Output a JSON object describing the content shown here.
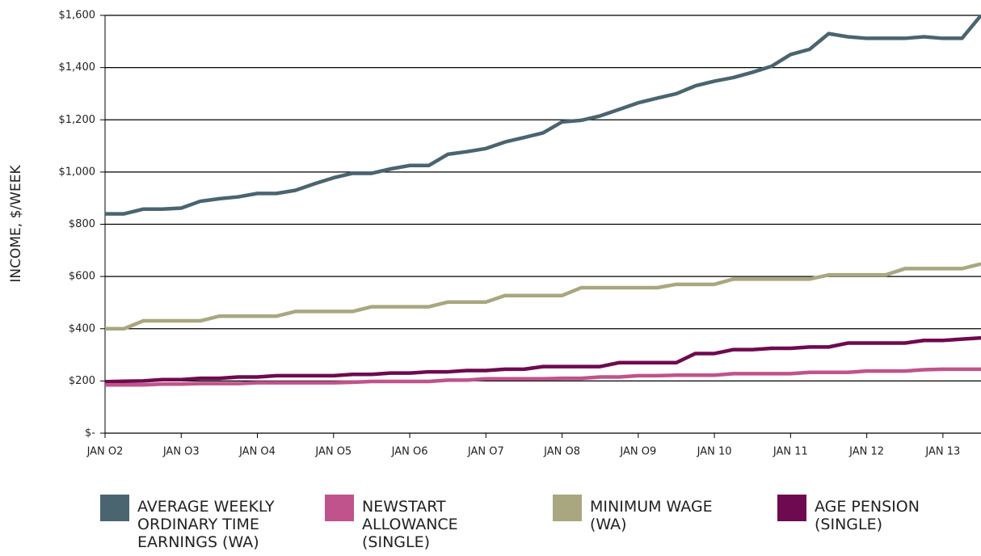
{
  "chart_data": {
    "type": "line",
    "y_label": "INCOME, $/WEEK",
    "categories": [
      "JAN O2",
      null,
      null,
      null,
      "JAN O3",
      null,
      null,
      null,
      "JAN O4",
      null,
      null,
      null,
      "JAN O5",
      null,
      null,
      null,
      "JAN O6",
      null,
      null,
      null,
      "JAN O7",
      null,
      null,
      null,
      "JAN O8",
      null,
      null,
      null,
      "JAN O9",
      null,
      null,
      null,
      "JAN 10",
      null,
      null,
      null,
      "JAN 11",
      null,
      null,
      null,
      "JAN 12",
      null,
      null,
      null,
      "JAN 13",
      null,
      null
    ],
    "series": [
      {
        "name": "AVERAGE WEEKLY ORDINARY TIME EARNINGS (WA)",
        "color": "#4a6470",
        "values": [
          840,
          840,
          858,
          858,
          862,
          888,
          898,
          905,
          918,
          918,
          930,
          955,
          978,
          995,
          995,
          1012,
          1025,
          1025,
          1068,
          1078,
          1090,
          1115,
          1132,
          1150,
          1192,
          1198,
          1215,
          1240,
          1265,
          1283,
          1300,
          1330,
          1348,
          1362,
          1382,
          1405,
          1450,
          1470,
          1530,
          1518,
          1512,
          1512,
          1512,
          1518,
          1512,
          1512,
          1600
        ]
      },
      {
        "name": "NEWSTART ALLOWANCE (SINGLE)",
        "color": "#c0538b",
        "values": [
          185,
          185,
          185,
          188,
          188,
          190,
          190,
          190,
          193,
          193,
          193,
          193,
          193,
          195,
          198,
          198,
          198,
          198,
          203,
          203,
          208,
          208,
          208,
          208,
          210,
          210,
          215,
          215,
          220,
          220,
          222,
          222,
          222,
          228,
          228,
          228,
          228,
          233,
          233,
          233,
          238,
          238,
          238,
          243,
          245,
          245,
          245
        ]
      },
      {
        "name": "MINIMUM WAGE (WA)",
        "color": "#a8a77f",
        "values": [
          400,
          400,
          430,
          430,
          430,
          430,
          448,
          448,
          448,
          448,
          466,
          466,
          466,
          466,
          484,
          484,
          484,
          484,
          502,
          502,
          502,
          527,
          527,
          527,
          527,
          557,
          557,
          557,
          557,
          557,
          570,
          570,
          570,
          590,
          590,
          590,
          590,
          590,
          606,
          606,
          606,
          606,
          630,
          630,
          630,
          630,
          648
        ]
      },
      {
        "name": "AGE PENSION (SINGLE)",
        "color": "#6e0a4f",
        "values": [
          197,
          199,
          200,
          205,
          205,
          210,
          210,
          215,
          215,
          220,
          220,
          220,
          220,
          225,
          225,
          230,
          230,
          235,
          235,
          240,
          240,
          245,
          245,
          255,
          255,
          255,
          255,
          270,
          270,
          270,
          270,
          305,
          305,
          320,
          320,
          325,
          325,
          330,
          330,
          345,
          345,
          345,
          345,
          355,
          355,
          360,
          365
        ]
      }
    ],
    "ylim": [
      0,
      1600
    ],
    "yticks": [
      {
        "value": 0,
        "label": "$-"
      },
      {
        "value": 200,
        "label": "$200"
      },
      {
        "value": 400,
        "label": "$400"
      },
      {
        "value": 600,
        "label": "$600"
      },
      {
        "value": 800,
        "label": "$800"
      },
      {
        "value": 1000,
        "label": "$1,000"
      },
      {
        "value": 1200,
        "label": "$1,200"
      },
      {
        "value": 1400,
        "label": "$1,400"
      },
      {
        "value": 1600,
        "label": "$1,600"
      }
    ],
    "grid": true
  }
}
